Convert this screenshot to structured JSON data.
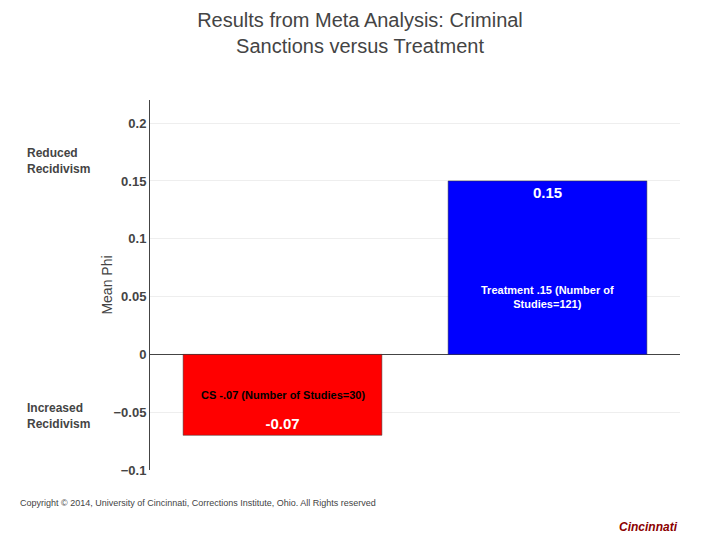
{
  "chart_data": {
    "type": "bar",
    "title": "Results from Meta Analysis: Criminal\nSanctions versus Treatment",
    "ylabel": "Mean Phi",
    "categories": [
      null,
      null
    ],
    "values": [
      -0.07,
      0.15
    ],
    "colors": [
      "#ff0000",
      "#0000ff"
    ],
    "ylim": [
      -0.1,
      0.22
    ],
    "yticks": [
      {
        "value": -0.1,
        "label": "−0.1"
      },
      {
        "value": -0.05,
        "label": "−0.05"
      },
      0,
      0.05,
      0.1,
      0.15,
      0.2
    ],
    "grid": true,
    "data_labels": true,
    "tick_labels": "y",
    "annotations": [
      "CS -.07 (Number of Studies=30)",
      "Treatment .15 (Number of\nStudies=121)",
      "Reduced\nRecidivism",
      "Increased\nRecidivism",
      "Copyright © 2014, University of Cincinnati, Corrections Institute, Ohio. All Rights reserved",
      "Cincinnati"
    ]
  }
}
